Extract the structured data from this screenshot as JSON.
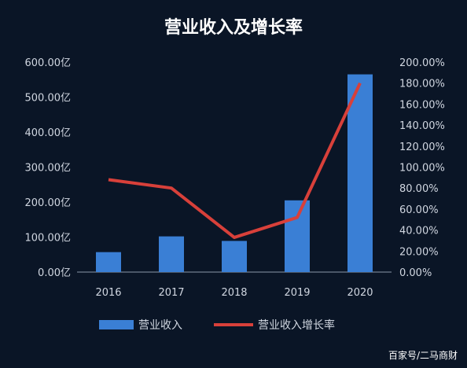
{
  "chart_data": {
    "type": "bar",
    "title": "营业收入及增长率",
    "categories": [
      "2016",
      "2017",
      "2018",
      "2019",
      "2020"
    ],
    "series": [
      {
        "name": "营业收入",
        "type": "bar",
        "axis": "left",
        "values": [
          57,
          102,
          89,
          205,
          565
        ],
        "color": "#3a7fd5"
      },
      {
        "name": "营业收入增长率",
        "type": "line",
        "axis": "right",
        "values": [
          88,
          80,
          33,
          52,
          180
        ],
        "color": "#d8403a"
      }
    ],
    "y_left": {
      "ylim": [
        0,
        600
      ],
      "ticks": [
        "0.00亿",
        "100.00亿",
        "200.00亿",
        "300.00亿",
        "400.00亿",
        "500.00亿",
        "600.00亿"
      ]
    },
    "y_right": {
      "ylim": [
        0,
        200
      ],
      "ticks": [
        "0.00%",
        "20.00%",
        "40.00%",
        "60.00%",
        "80.00%",
        "100.00%",
        "120.00%",
        "140.00%",
        "160.00%",
        "180.00%",
        "200.00%"
      ]
    },
    "grid": false,
    "legend_position": "bottom"
  },
  "watermark": "百家号/二马商财"
}
